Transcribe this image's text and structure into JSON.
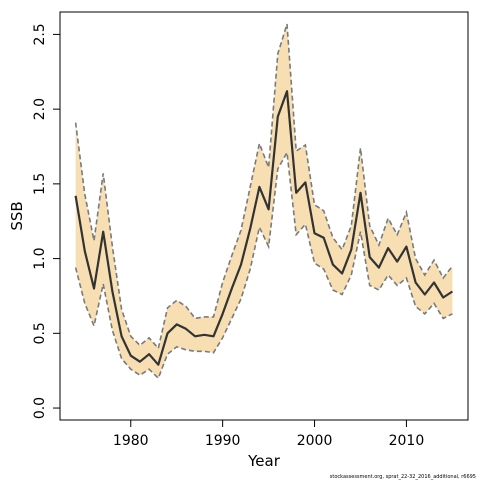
{
  "chart_data": {
    "type": "line",
    "title": "",
    "xlabel": "Year",
    "ylabel": "SSB",
    "xlim": [
      1972.3,
      2016.7
    ],
    "ylim": [
      -0.08,
      2.65
    ],
    "x_ticks": [
      1980,
      1990,
      2000,
      2010
    ],
    "x_tick_labels": [
      "1980",
      "1990",
      "2000",
      "2010"
    ],
    "y_ticks": [
      0.0,
      0.5,
      1.0,
      1.5,
      2.0,
      2.5
    ],
    "y_tick_labels": [
      "0.0",
      "0.5",
      "1.0",
      "1.5",
      "2.0",
      "2.5"
    ],
    "grid": false,
    "legend": "none",
    "colors": {
      "band_fill": "#f7deb3",
      "band_edge": "#7a7a7a",
      "line": "#333333",
      "frame": "#000000"
    },
    "x": [
      1974,
      1975,
      1976,
      1977,
      1978,
      1979,
      1980,
      1981,
      1982,
      1983,
      1984,
      1985,
      1986,
      1987,
      1988,
      1989,
      1990,
      1991,
      1992,
      1993,
      1994,
      1995,
      1996,
      1997,
      1998,
      1999,
      2000,
      2001,
      2002,
      2003,
      2004,
      2005,
      2006,
      2007,
      2008,
      2009,
      2010,
      2011,
      2012,
      2013,
      2014,
      2015
    ],
    "series": [
      {
        "role": "estimate",
        "values": [
          1.42,
          1.05,
          0.8,
          1.18,
          0.78,
          0.48,
          0.35,
          0.31,
          0.36,
          0.29,
          0.5,
          0.56,
          0.53,
          0.48,
          0.49,
          0.48,
          0.63,
          0.8,
          0.96,
          1.2,
          1.48,
          1.33,
          1.95,
          2.12,
          1.44,
          1.51,
          1.17,
          1.14,
          0.96,
          0.9,
          1.06,
          1.44,
          1.01,
          0.94,
          1.07,
          0.98,
          1.08,
          0.84,
          0.76,
          0.84,
          0.74,
          0.78
        ]
      },
      {
        "role": "upper",
        "values": [
          1.91,
          1.43,
          1.12,
          1.57,
          1.08,
          0.66,
          0.48,
          0.42,
          0.47,
          0.4,
          0.67,
          0.72,
          0.68,
          0.6,
          0.61,
          0.61,
          0.84,
          1.02,
          1.19,
          1.48,
          1.77,
          1.61,
          2.37,
          2.57,
          1.72,
          1.76,
          1.36,
          1.32,
          1.14,
          1.06,
          1.22,
          1.74,
          1.22,
          1.09,
          1.27,
          1.16,
          1.31,
          1.0,
          0.89,
          0.99,
          0.87,
          0.95
        ]
      },
      {
        "role": "lower",
        "values": [
          0.94,
          0.7,
          0.55,
          0.83,
          0.52,
          0.33,
          0.26,
          0.22,
          0.26,
          0.2,
          0.36,
          0.41,
          0.39,
          0.38,
          0.38,
          0.37,
          0.47,
          0.6,
          0.73,
          0.93,
          1.21,
          1.08,
          1.6,
          1.71,
          1.16,
          1.23,
          0.97,
          0.93,
          0.79,
          0.76,
          0.89,
          1.18,
          0.82,
          0.79,
          0.89,
          0.82,
          0.87,
          0.68,
          0.63,
          0.7,
          0.6,
          0.63
        ]
      }
    ]
  },
  "footer": {
    "text": "stockassessment.org, sprat_22-32_2016_additional, r6695"
  }
}
